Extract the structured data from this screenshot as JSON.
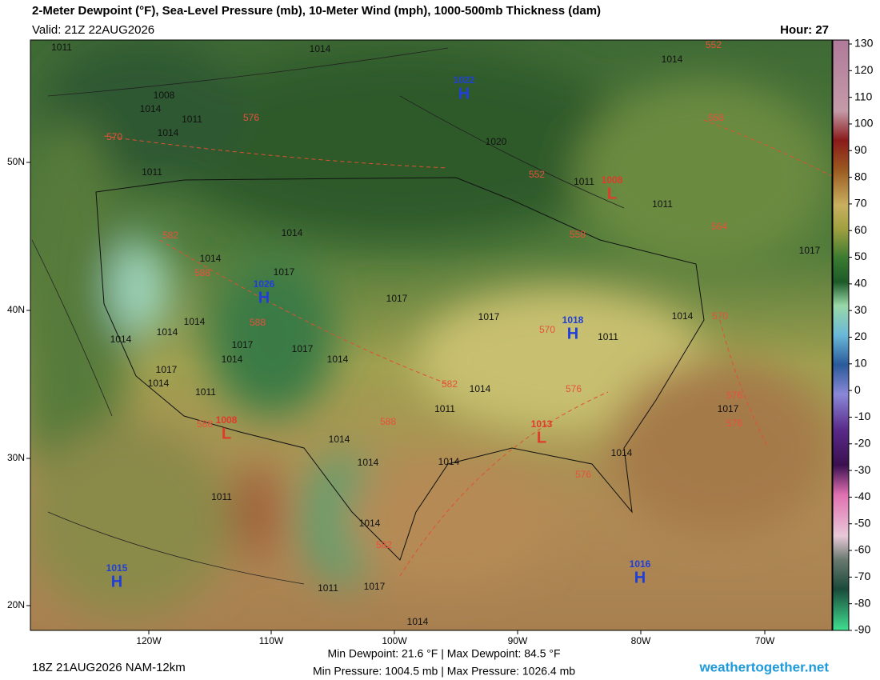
{
  "header": {
    "title": "2-Meter Dewpoint (°F), Sea-Level Pressure (mb), 10-Meter Wind (mph), 1000-500mb Thickness (dam)",
    "valid": "Valid: 21Z 22AUG2026",
    "hour": "Hour: 27"
  },
  "colorbar": {
    "ticks": [
      130,
      120,
      110,
      100,
      90,
      80,
      70,
      60,
      50,
      40,
      30,
      20,
      10,
      0,
      -10,
      -20,
      -30,
      -40,
      -50,
      -60,
      -70,
      -80,
      -90
    ]
  },
  "axes": {
    "lat_labels": [
      "50N",
      "40N",
      "30N",
      "20N"
    ],
    "lon_labels": [
      "120W",
      "110W",
      "100W",
      "90W",
      "80W",
      "70W"
    ]
  },
  "centers": [
    {
      "type": "H",
      "value": "1022"
    },
    {
      "type": "L",
      "value": "1008"
    },
    {
      "type": "H",
      "value": "1026"
    },
    {
      "type": "H",
      "value": "1018"
    },
    {
      "type": "L",
      "value": "1008"
    },
    {
      "type": "L",
      "value": "1013"
    },
    {
      "type": "H",
      "value": "1015"
    },
    {
      "type": "H",
      "value": "1016"
    }
  ],
  "isobar_labels": [
    "1011",
    "1014",
    "1014",
    "1008",
    "1014",
    "1011",
    "1014",
    "1020",
    "1011",
    "1011",
    "1011",
    "1014",
    "1014",
    "1017",
    "1017",
    "1017",
    "1014",
    "1014",
    "1011",
    "1017",
    "1017",
    "1014",
    "1014",
    "1017",
    "1014",
    "1011",
    "1014",
    "1011",
    "1017",
    "1014",
    "1014",
    "1014",
    "1014",
    "1011",
    "1014",
    "1011",
    "1017",
    "1014",
    "1017",
    "1014",
    "1014"
  ],
  "thickness_labels": [
    "570",
    "576",
    "552",
    "558",
    "552",
    "582",
    "588",
    "558",
    "564",
    "570",
    "570",
    "588",
    "582",
    "576",
    "588",
    "588",
    "576",
    "576",
    "576",
    "582"
  ],
  "footer": {
    "run": "18Z 21AUG2026 NAM-12km",
    "dewpoint": "Min Dewpoint:  21.6 °F | Max Dewpoint:  84.5 °F",
    "pressure": "Min Pressure: 1004.5 mb | Max Pressure: 1026.4 mb",
    "brand": "weathertogether.net"
  }
}
